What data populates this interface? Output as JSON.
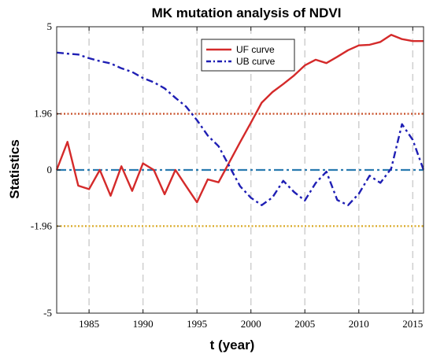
{
  "chart_data": {
    "type": "line",
    "title": "MK mutation analysis of NDVI",
    "xlabel": "t (year)",
    "ylabel": "Statistics",
    "xlim": [
      1982,
      2016
    ],
    "ylim": [
      -5,
      5
    ],
    "x_ticks": [
      1985,
      1990,
      1995,
      2000,
      2005,
      2010,
      2015
    ],
    "y_ticks": [
      {
        "value": 5,
        "label": "5"
      },
      {
        "value": 1.96,
        "label": "1.96"
      },
      {
        "value": 0,
        "label": "0"
      },
      {
        "value": -1.96,
        "label": "-1.96"
      },
      {
        "value": -5,
        "label": "-5"
      }
    ],
    "grid": "vertical-dashed",
    "legend_position": "top-center",
    "x": [
      1982,
      1983,
      1984,
      1985,
      1986,
      1987,
      1988,
      1989,
      1990,
      1991,
      1992,
      1993,
      1994,
      1995,
      1996,
      1997,
      1998,
      1999,
      2000,
      2001,
      2002,
      2003,
      2004,
      2005,
      2006,
      2007,
      2008,
      2009,
      2010,
      2011,
      2012,
      2013,
      2014,
      2015,
      2016
    ],
    "series": [
      {
        "name": "UF curve",
        "color": "#d42a2a",
        "style": "solid",
        "values": [
          0.0,
          0.98,
          -0.55,
          -0.67,
          0.0,
          -0.9,
          0.13,
          -0.73,
          0.23,
          0.0,
          -0.85,
          0.0,
          -0.57,
          -1.13,
          -0.33,
          -0.43,
          0.27,
          0.97,
          1.65,
          2.35,
          2.72,
          3.0,
          3.3,
          3.65,
          3.85,
          3.73,
          3.95,
          4.18,
          4.35,
          4.37,
          4.47,
          4.72,
          4.57,
          4.5,
          4.5
        ]
      },
      {
        "name": "UB curve",
        "color": "#1f1fb4",
        "style": "dashdot",
        "values": [
          4.1,
          4.06,
          4.03,
          3.9,
          3.8,
          3.72,
          3.55,
          3.42,
          3.21,
          3.06,
          2.85,
          2.52,
          2.21,
          1.74,
          1.2,
          0.83,
          0.13,
          -0.57,
          -0.97,
          -1.23,
          -0.96,
          -0.38,
          -0.77,
          -1.07,
          -0.46,
          -0.06,
          -1.05,
          -1.23,
          -0.83,
          -0.2,
          -0.45,
          0.05,
          1.6,
          1.05,
          0.0
        ]
      }
    ],
    "reference_lines": [
      {
        "value": 1.96,
        "color": "#c8502a"
      },
      {
        "value": 0,
        "color": "#2a7bb0"
      },
      {
        "value": -1.96,
        "color": "#d9a925"
      }
    ]
  }
}
